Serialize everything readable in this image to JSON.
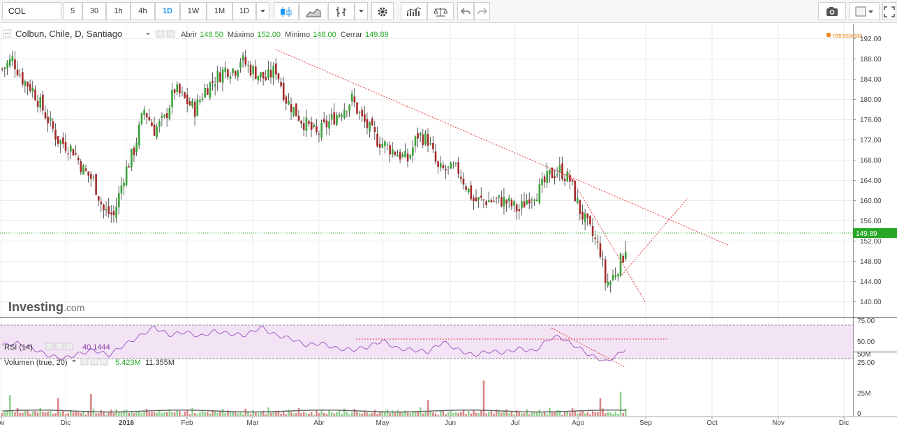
{
  "toolbar": {
    "symbol": "COL",
    "intervals": [
      {
        "label": "5",
        "active": false
      },
      {
        "label": "30",
        "active": false
      },
      {
        "label": "1h",
        "active": false
      },
      {
        "label": "4h",
        "active": false
      },
      {
        "label": "1D",
        "active": true
      },
      {
        "label": "1W",
        "active": false
      },
      {
        "label": "1M",
        "active": false
      },
      {
        "label": "1D",
        "active": false
      }
    ]
  },
  "main_pane": {
    "title": "Colbun, Chile, D, Santiago",
    "open_label": "Abrir",
    "open_value": "148.50",
    "high_label": "Máximo",
    "high_value": "152.00",
    "low_label": "Mínimo",
    "low_value": "148.00",
    "close_label": "Cerrar",
    "close_value": "149.89",
    "delayed_label": "retrasadas",
    "watermark_bold": "Investing",
    "watermark_suffix": ".com",
    "last_price_label": "149.89"
  },
  "rsi_pane": {
    "title": "RSI (14)",
    "value": "40.1444",
    "axis_labels": [
      "75.00",
      "50.00",
      "25.00"
    ]
  },
  "volume_pane": {
    "title": "Volumen (true, 20)",
    "value1": "5.423M",
    "value2": "11.355M",
    "axis_labels": [
      "50M",
      "25M",
      "0"
    ]
  },
  "x_axis": [
    "ov",
    "Dic",
    "2016",
    "Feb",
    "Mar",
    "Abr",
    "May",
    "Jun",
    "Jul",
    "Ago",
    "Sep",
    "Oct",
    "Nov",
    "Dic"
  ],
  "colors": {
    "up": "#3aa23a",
    "down": "#a52a2a",
    "rsi_line": "#a45dc2",
    "rsi_band": "#f3e4f5",
    "trend": "#e23b3b",
    "last_price": "#26a826",
    "grid": "#ebebeb",
    "delayed": "#f08a24"
  },
  "chart_data": {
    "type": "candlestick",
    "ylim": [
      138,
      194
    ],
    "y_ticks": [
      140,
      144,
      148,
      152,
      156,
      160,
      164,
      168,
      172,
      176,
      180,
      184,
      188,
      192
    ],
    "last_price": 149.89,
    "waypoints": [
      [
        0,
        186
      ],
      [
        4,
        188
      ],
      [
        8,
        184
      ],
      [
        12,
        182
      ],
      [
        18,
        176
      ],
      [
        22,
        172
      ],
      [
        28,
        170
      ],
      [
        32,
        166
      ],
      [
        36,
        164
      ],
      [
        40,
        158
      ],
      [
        44,
        157
      ],
      [
        48,
        165
      ],
      [
        52,
        170
      ],
      [
        56,
        178
      ],
      [
        60,
        174
      ],
      [
        64,
        176
      ],
      [
        68,
        182
      ],
      [
        72,
        180
      ],
      [
        76,
        178
      ],
      [
        80,
        182
      ],
      [
        84,
        184
      ],
      [
        88,
        186
      ],
      [
        92,
        186
      ],
      [
        94,
        188
      ],
      [
        98,
        186
      ],
      [
        104,
        184
      ],
      [
        108,
        186
      ],
      [
        112,
        180
      ],
      [
        118,
        176
      ],
      [
        124,
        173
      ],
      [
        130,
        176
      ],
      [
        134,
        178
      ],
      [
        138,
        180
      ],
      [
        142,
        176
      ],
      [
        148,
        172
      ],
      [
        154,
        170
      ],
      [
        160,
        168
      ],
      [
        164,
        173
      ],
      [
        168,
        172
      ],
      [
        172,
        166
      ],
      [
        176,
        166
      ],
      [
        180,
        166
      ],
      [
        186,
        160
      ],
      [
        192,
        160
      ],
      [
        198,
        160
      ],
      [
        204,
        158
      ],
      [
        208,
        161
      ],
      [
        212,
        162
      ],
      [
        216,
        165
      ],
      [
        220,
        166
      ],
      [
        224,
        164
      ],
      [
        228,
        158
      ],
      [
        232,
        154
      ],
      [
        236,
        150
      ],
      [
        238,
        144
      ],
      [
        240,
        144
      ],
      [
        242,
        146
      ],
      [
        244,
        148
      ],
      [
        246,
        149.89
      ]
    ],
    "rsi": [
      [
        0,
        45
      ],
      [
        6,
        48
      ],
      [
        12,
        40
      ],
      [
        18,
        30
      ],
      [
        24,
        25
      ],
      [
        30,
        32
      ],
      [
        36,
        38
      ],
      [
        42,
        30
      ],
      [
        48,
        45
      ],
      [
        54,
        58
      ],
      [
        60,
        72
      ],
      [
        66,
        60
      ],
      [
        72,
        65
      ],
      [
        78,
        58
      ],
      [
        84,
        66
      ],
      [
        90,
        62
      ],
      [
        96,
        60
      ],
      [
        102,
        72
      ],
      [
        108,
        60
      ],
      [
        114,
        55
      ],
      [
        120,
        45
      ],
      [
        126,
        48
      ],
      [
        132,
        40
      ],
      [
        138,
        38
      ],
      [
        144,
        42
      ],
      [
        150,
        52
      ],
      [
        156,
        40
      ],
      [
        162,
        38
      ],
      [
        168,
        35
      ],
      [
        174,
        50
      ],
      [
        180,
        38
      ],
      [
        186,
        30
      ],
      [
        192,
        36
      ],
      [
        198,
        34
      ],
      [
        204,
        40
      ],
      [
        210,
        36
      ],
      [
        216,
        55
      ],
      [
        220,
        58
      ],
      [
        224,
        48
      ],
      [
        228,
        40
      ],
      [
        232,
        30
      ],
      [
        236,
        24
      ],
      [
        238,
        20
      ],
      [
        242,
        28
      ],
      [
        246,
        40
      ]
    ],
    "volume_pattern": [
      3,
      2,
      5,
      1,
      4,
      2,
      7,
      3,
      2,
      6,
      4,
      1,
      3,
      5,
      2,
      8,
      3,
      2,
      4,
      6,
      2,
      3,
      1,
      5,
      4,
      2,
      3,
      7,
      2,
      4
    ],
    "volume_spikes": [
      [
        3,
        26
      ],
      [
        22,
        22
      ],
      [
        35,
        27
      ],
      [
        168,
        20
      ],
      [
        190,
        44
      ],
      [
        236,
        22
      ],
      [
        244,
        30
      ]
    ]
  }
}
